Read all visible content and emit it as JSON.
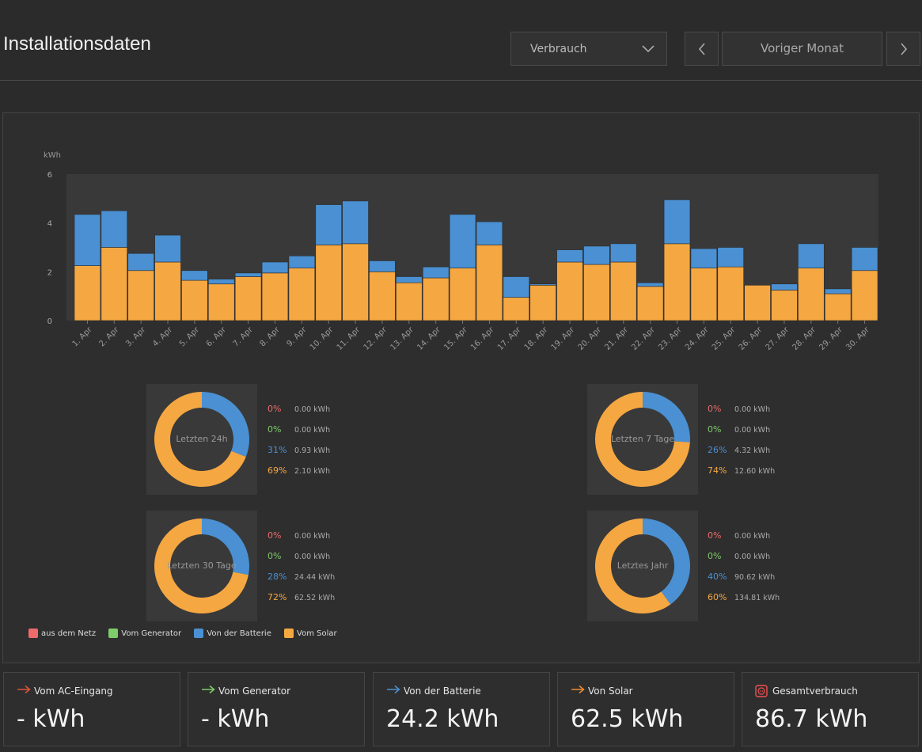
{
  "header": {
    "title": "Installationsdaten",
    "dropdown_value": "Verbrauch",
    "period_label": "Voriger Monat"
  },
  "colors": {
    "grid": "#ef6b6b",
    "generator": "#7ecc6a",
    "battery": "#4a90d2",
    "solar": "#f5a742",
    "plot_bg": "#393939"
  },
  "chart_data": {
    "type": "bar",
    "stacked": true,
    "ylabel": "kWh",
    "ylim": [
      0,
      6
    ],
    "yticks": [
      0,
      2,
      4,
      6
    ],
    "grid": false,
    "categories": [
      "1. Apr",
      "2. Apr",
      "3. Apr",
      "4. Apr",
      "5. Apr",
      "6. Apr",
      "7. Apr",
      "8. Apr",
      "9. Apr",
      "10. Apr",
      "11. Apr",
      "12. Apr",
      "13. Apr",
      "14. Apr",
      "15. Apr",
      "16. Apr",
      "17. Apr",
      "18. Apr",
      "19. Apr",
      "20. Apr",
      "21. Apr",
      "22. Apr",
      "23. Apr",
      "24. Apr",
      "25. Apr",
      "26. Apr",
      "27. Apr",
      "28. Apr",
      "29. Apr",
      "30. Apr"
    ],
    "series": [
      {
        "name": "Vom Solar",
        "values": [
          2.25,
          3.0,
          2.05,
          2.4,
          1.65,
          1.5,
          1.8,
          1.95,
          2.15,
          3.1,
          3.15,
          2.0,
          1.55,
          1.75,
          2.15,
          3.1,
          0.95,
          1.45,
          2.4,
          2.3,
          2.4,
          1.4,
          3.15,
          2.15,
          2.2,
          1.45,
          1.25,
          2.15,
          1.1,
          2.05
        ]
      },
      {
        "name": "Von der Batterie",
        "values": [
          2.1,
          1.5,
          0.7,
          1.1,
          0.4,
          0.2,
          0.15,
          0.45,
          0.5,
          1.65,
          1.75,
          0.45,
          0.25,
          0.45,
          2.2,
          0.95,
          0.85,
          0.05,
          0.5,
          0.75,
          0.75,
          0.15,
          1.8,
          0.8,
          0.8,
          0.0,
          0.25,
          1.0,
          0.2,
          0.95
        ]
      }
    ]
  },
  "summaries": [
    {
      "label": "Letzten 24h",
      "rows": [
        {
          "pct": "0%",
          "kwh": "0.00 kWh"
        },
        {
          "pct": "0%",
          "kwh": "0.00 kWh"
        },
        {
          "pct": "31%",
          "kwh": "0.93 kWh"
        },
        {
          "pct": "69%",
          "kwh": "2.10 kWh"
        }
      ],
      "battery_share": 0.31
    },
    {
      "label": "Letzten 7 Tage",
      "rows": [
        {
          "pct": "0%",
          "kwh": "0.00 kWh"
        },
        {
          "pct": "0%",
          "kwh": "0.00 kWh"
        },
        {
          "pct": "26%",
          "kwh": "4.32 kWh"
        },
        {
          "pct": "74%",
          "kwh": "12.60 kWh"
        }
      ],
      "battery_share": 0.26
    },
    {
      "label": "Letzten 30 Tage",
      "rows": [
        {
          "pct": "0%",
          "kwh": "0.00 kWh"
        },
        {
          "pct": "0%",
          "kwh": "0.00 kWh"
        },
        {
          "pct": "28%",
          "kwh": "24.44 kWh"
        },
        {
          "pct": "72%",
          "kwh": "62.52 kWh"
        }
      ],
      "battery_share": 0.28
    },
    {
      "label": "Letztes Jahr",
      "rows": [
        {
          "pct": "0%",
          "kwh": "0.00 kWh"
        },
        {
          "pct": "0%",
          "kwh": "0.00 kWh"
        },
        {
          "pct": "40%",
          "kwh": "90.62 kWh"
        },
        {
          "pct": "60%",
          "kwh": "134.81 kWh"
        }
      ],
      "battery_share": 0.4
    }
  ],
  "legend": [
    "aus dem Netz",
    "Vom Generator",
    "Von der Batterie",
    "Vom Solar"
  ],
  "cards": [
    {
      "title": "Vom AC-Eingang",
      "value": "- kWh",
      "icon": "arrow-right-icon",
      "color": "#e0533a"
    },
    {
      "title": "Vom Generator",
      "value": "- kWh",
      "icon": "arrow-right-icon",
      "color": "#7ecc6a"
    },
    {
      "title": "Von der Batterie",
      "value": "24.2 kWh",
      "icon": "arrow-right-icon",
      "color": "#4a90d2"
    },
    {
      "title": "Von Solar",
      "value": "62.5 kWh",
      "icon": "arrow-right-icon",
      "color": "#f08a2c"
    },
    {
      "title": "Gesamtverbrauch",
      "value": "86.7 kWh",
      "icon": "consumption-icon",
      "color": "#ef5050"
    }
  ]
}
